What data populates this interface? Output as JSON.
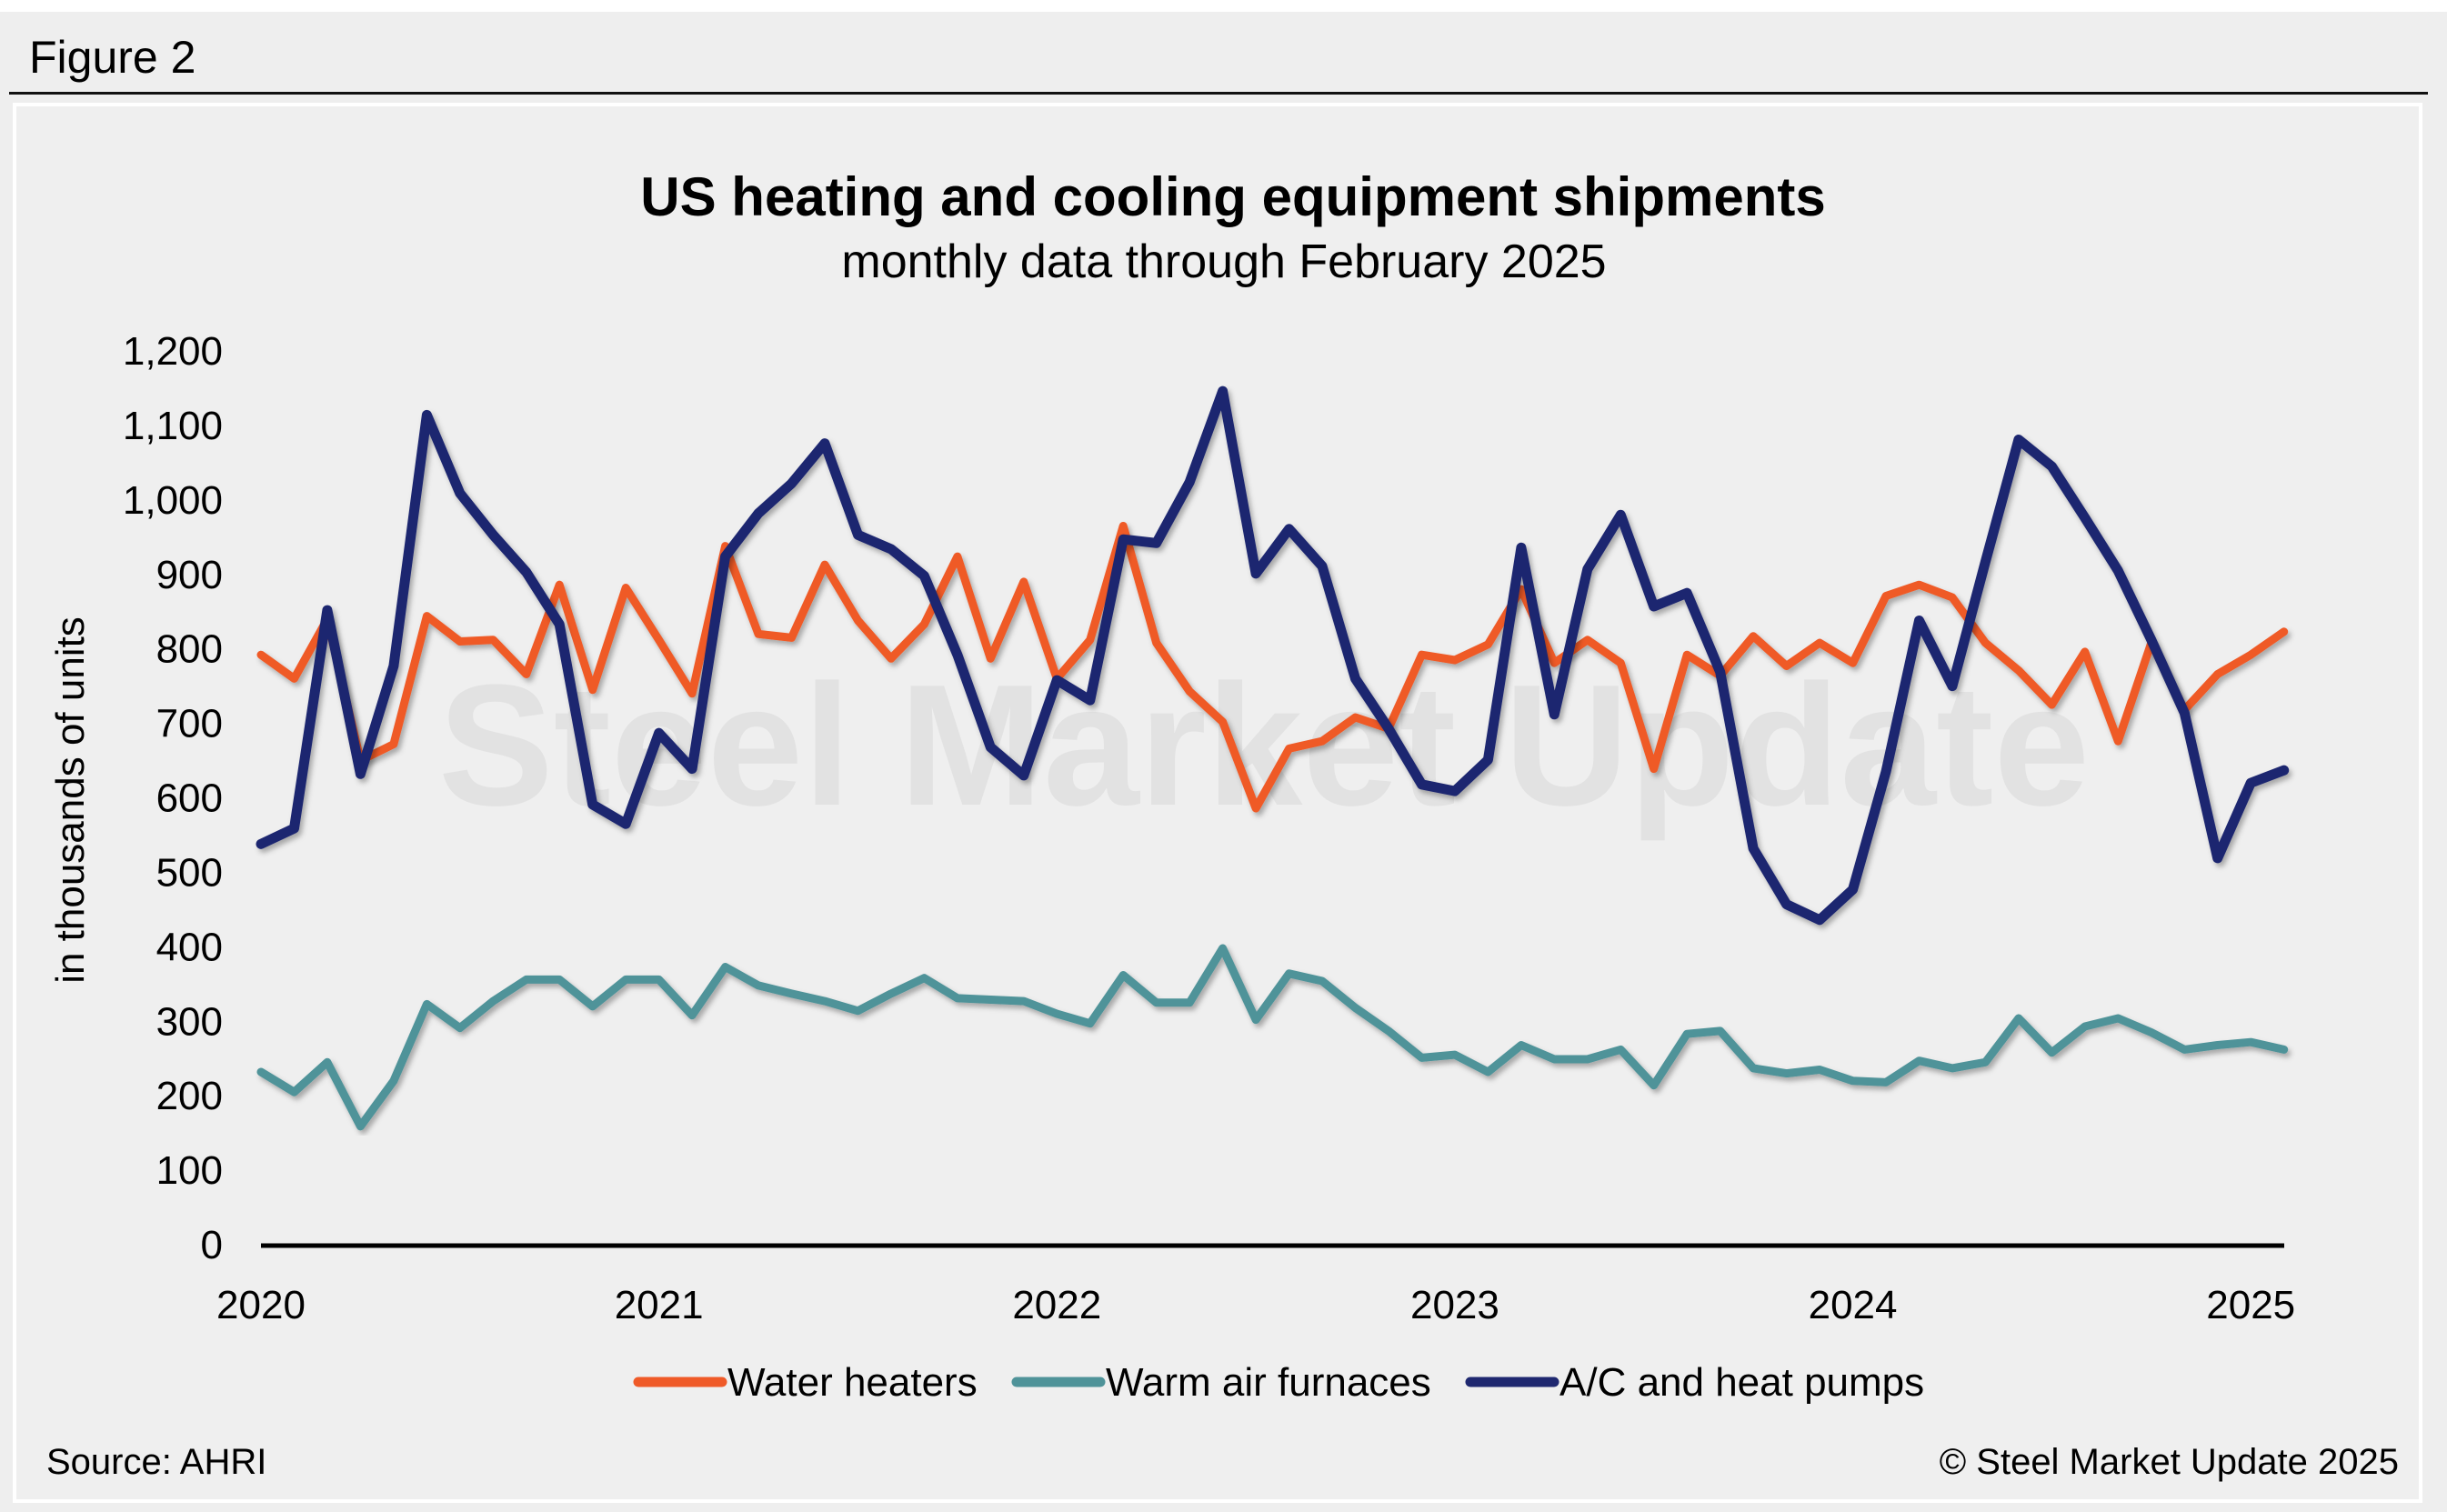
{
  "figure_label": "Figure 2",
  "watermark": "Steel Market Update",
  "source": "Source: AHRI",
  "copyright": "© Steel Market Update 2025",
  "chart_data": {
    "type": "line",
    "title": "US heating and cooling equipment shipments",
    "subtitle": "monthly data through February 2025",
    "ylabel": "in thousands of units",
    "xlabel": "",
    "ylim": [
      0,
      1200
    ],
    "yticks": [
      "0",
      "100",
      "200",
      "300",
      "400",
      "500",
      "600",
      "700",
      "800",
      "900",
      "1,000",
      "1,100",
      "1,200"
    ],
    "xticks": [
      "2020",
      "2021",
      "2022",
      "2023",
      "2024",
      "2025"
    ],
    "x_start": "2020-01",
    "x_end": "2025-02",
    "frequency": "monthly",
    "grid": false,
    "legend_position": "bottom",
    "series": [
      {
        "name": "Water heaters",
        "color": "#ef5a28",
        "values": [
          792,
          760,
          840,
          650,
          672,
          844,
          810,
          812,
          766,
          886,
          745,
          882,
          812,
          740,
          938,
          820,
          815,
          913,
          838,
          787,
          833,
          924,
          787,
          890,
          760,
          812,
          965,
          808,
          743,
          702,
          586,
          666,
          676,
          708,
          693,
          792,
          785,
          806,
          880,
          781,
          812,
          781,
          639,
          792,
          764,
          817,
          777,
          808,
          781,
          871,
          886,
          869,
          808,
          771,
          725,
          796,
          676,
          808,
          718,
          766,
          792,
          823
        ]
      },
      {
        "name": "Warm air furnaces",
        "color": "#4f9399",
        "values": [
          232,
          205,
          245,
          159,
          220,
          323,
          291,
          327,
          356,
          356,
          320,
          356,
          356,
          308,
          373,
          348,
          337,
          327,
          314,
          337,
          358,
          331,
          329,
          327,
          310,
          297,
          362,
          325,
          325,
          398,
          302,
          364,
          354,
          318,
          287,
          251,
          255,
          232,
          268,
          249,
          249,
          262,
          214,
          283,
          287,
          237,
          230,
          235,
          220,
          218,
          247,
          237,
          245,
          304,
          258,
          293,
          304,
          285,
          262,
          268,
          272,
          262
        ]
      },
      {
        "name": "A/C and heat pumps",
        "color": "#1f2870",
        "values": [
          538,
          559,
          852,
          632,
          777,
          1114,
          1009,
          953,
          903,
          833,
          591,
          565,
          687,
          639,
          924,
          982,
          1022,
          1076,
          953,
          934,
          898,
          792,
          668,
          630,
          758,
          731,
          947,
          942,
          1024,
          1146,
          901,
          961,
          911,
          760,
          693,
          618,
          609,
          651,
          936,
          712,
          907,
          980,
          857,
          875,
          769,
          532,
          457,
          436,
          477,
          635,
          838,
          750,
          917,
          1081,
          1045,
          976,
          905,
          812,
          714,
          519,
          620,
          637
        ]
      }
    ]
  }
}
